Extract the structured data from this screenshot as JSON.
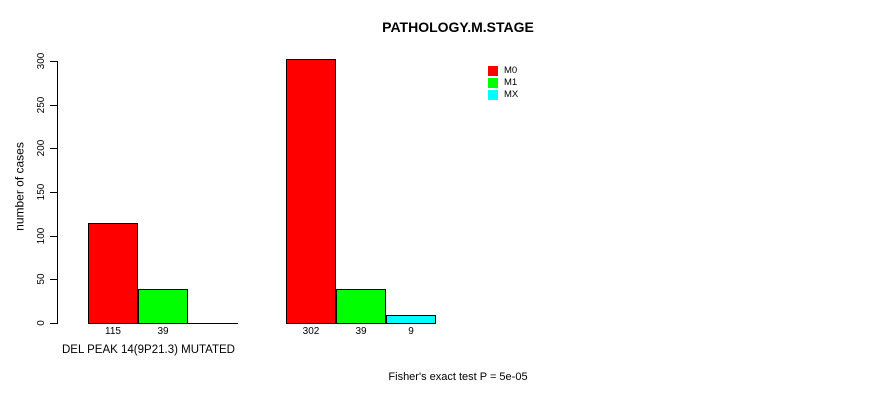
{
  "chart_data": {
    "type": "bar",
    "title": "PATHOLOGY.M.STAGE",
    "ylabel": "number of cases",
    "xlabel": "DEL PEAK 14(9P21.3) MUTATED",
    "annotation": "Fisher's exact test P = 5e-05",
    "ylim": [
      0,
      300
    ],
    "yticks": [
      0,
      50,
      100,
      150,
      200,
      250,
      300
    ],
    "grid": false,
    "legend_position": "top-right-inside",
    "categories": [
      "DEL PEAK 14(9P21.3) MUTATED",
      ""
    ],
    "series": [
      {
        "name": "M0",
        "color": "#FF0000",
        "values": [
          115,
          302
        ]
      },
      {
        "name": "M1",
        "color": "#00FF00",
        "values": [
          39,
          39
        ]
      },
      {
        "name": "MX",
        "color": "#00FFFF",
        "values": [
          0,
          9
        ]
      }
    ]
  },
  "colors": {
    "background": "#FFFFFF",
    "text": "#000000",
    "bar_border": "#000000"
  }
}
